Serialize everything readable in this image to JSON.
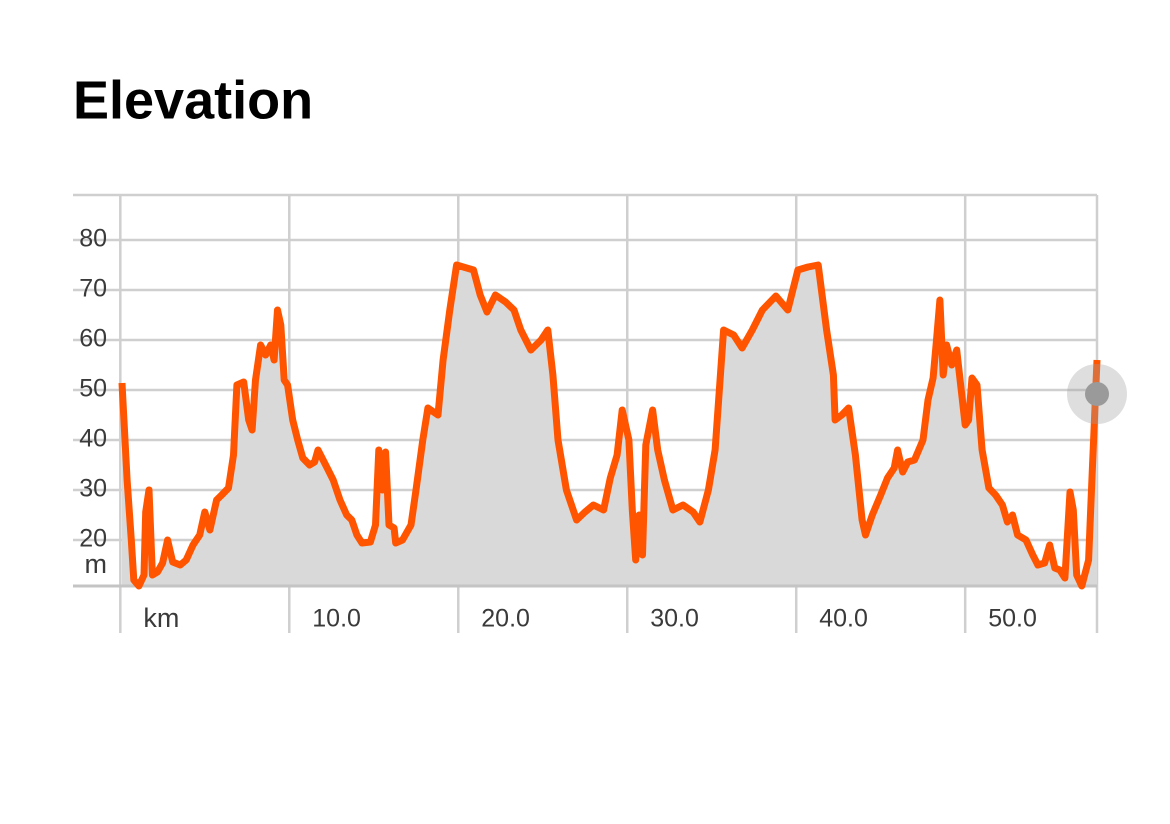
{
  "chart_data": {
    "type": "area",
    "title": "Elevation",
    "xlabel": "km",
    "ylabel": "m",
    "x": [
      0.1,
      0.4,
      0.65,
      0.8,
      1.1,
      1.4,
      1.5,
      1.7,
      1.9,
      2.2,
      2.5,
      2.8,
      3.1,
      3.55,
      3.9,
      4.3,
      4.7,
      5.0,
      5.3,
      5.7,
      6.0,
      6.4,
      6.7,
      6.9,
      7.3,
      7.6,
      7.8,
      8.0,
      8.3,
      8.6,
      8.9,
      9.1,
      9.3,
      9.5,
      9.7,
      9.9,
      10.2,
      10.5,
      10.8,
      11.2,
      11.5,
      11.7,
      12.0,
      12.3,
      12.6,
      13.0,
      13.4,
      13.7,
      14.0,
      14.3,
      14.8,
      15.1,
      15.3,
      15.5,
      15.7,
      15.9,
      16.2,
      16.3,
      16.7,
      17.2,
      17.5,
      17.9,
      18.2,
      18.8,
      19.1,
      19.5,
      19.9,
      20.3,
      20.9,
      21.3,
      21.7,
      22.2,
      22.8,
      23.3,
      23.7,
      24.3,
      24.9,
      25.3,
      25.6,
      25.9,
      26.4,
      27.0,
      27.5,
      28.0,
      28.6,
      29.0,
      29.4,
      29.7,
      30.1,
      30.3,
      30.5,
      30.7,
      30.9,
      31.1,
      31.5,
      31.8,
      32.2,
      32.7,
      33.3,
      33.9,
      34.3,
      34.8,
      35.2,
      35.7,
      36.3,
      36.8,
      37.4,
      38.0,
      38.8,
      39.5,
      40.1,
      40.7,
      41.3,
      41.8,
      42.2,
      42.3,
      42.7,
      43.1,
      43.5,
      43.9,
      44.1,
      44.5,
      45.0,
      45.4,
      45.8,
      46.0,
      46.3,
      46.6,
      47.0,
      47.5,
      47.8,
      48.1,
      48.3,
      48.5,
      48.7,
      48.9,
      49.2,
      49.5,
      49.7,
      50.0,
      50.2,
      50.4,
      50.7,
      51.0,
      51.4,
      51.8,
      52.2,
      52.5,
      52.8,
      53.1,
      53.6,
      54.0,
      54.3,
      54.7,
      55.0,
      55.3,
      55.6,
      55.9,
      56.2,
      56.4,
      56.6,
      56.9,
      57.3,
      57.5,
      57.8
    ],
    "series": [
      {
        "name": "Elevation",
        "color": "#ff5500",
        "fill": "#d9d9d9",
        "values": [
          51.4,
          32,
          20,
          12,
          10.8,
          13,
          25.6,
          30,
          13,
          13.6,
          15.4,
          20,
          15.6,
          15,
          16,
          19,
          21,
          25.6,
          22,
          28,
          29,
          30.4,
          37,
          51,
          51.6,
          44,
          42,
          52,
          59,
          57,
          59,
          56,
          66,
          63,
          52,
          51,
          44,
          40,
          36.4,
          35,
          35.6,
          38,
          36,
          34,
          32,
          28,
          25,
          24,
          21,
          19.4,
          19.6,
          23,
          38,
          30,
          37.6,
          23,
          22.4,
          19.4,
          20,
          23,
          30,
          40,
          46.4,
          45,
          56,
          66,
          75,
          74.6,
          74,
          69,
          65.6,
          69,
          67.6,
          66,
          62,
          58,
          60,
          62,
          53,
          40,
          30,
          24,
          25.6,
          27,
          26,
          32.4,
          37,
          46,
          40,
          26,
          16,
          25,
          17,
          39,
          46,
          38,
          32,
          26,
          27,
          25.6,
          23.6,
          30,
          38,
          62,
          61,
          58.4,
          62,
          66,
          68.8,
          66,
          74,
          74.6,
          75,
          62,
          53,
          44,
          45,
          46.4,
          37,
          24,
          21,
          25,
          29,
          32.4,
          34.4,
          38,
          33.6,
          35.6,
          36,
          40,
          48,
          52.4,
          60,
          68,
          53,
          59,
          55,
          58,
          52,
          43,
          44,
          52.4,
          51,
          38,
          30.4,
          29,
          27,
          23.6,
          25,
          21,
          20,
          17,
          15,
          15.4,
          19,
          14.4,
          14,
          12.4,
          29.6,
          26,
          13,
          10.8,
          16,
          32,
          56
        ]
      }
    ],
    "xlim": [
      -2.8,
      57.8
    ],
    "ylim": [
      10.8,
      89
    ],
    "xticks": [
      {
        "value": 0,
        "label": "km"
      },
      {
        "value": 10,
        "label": "10.0"
      },
      {
        "value": 20,
        "label": "20.0"
      },
      {
        "value": 30,
        "label": "30.0"
      },
      {
        "value": 40,
        "label": "40.0"
      },
      {
        "value": 50,
        "label": "50.0"
      }
    ],
    "yticks": [
      20,
      30,
      40,
      50,
      60,
      70,
      80
    ],
    "grid": true
  }
}
